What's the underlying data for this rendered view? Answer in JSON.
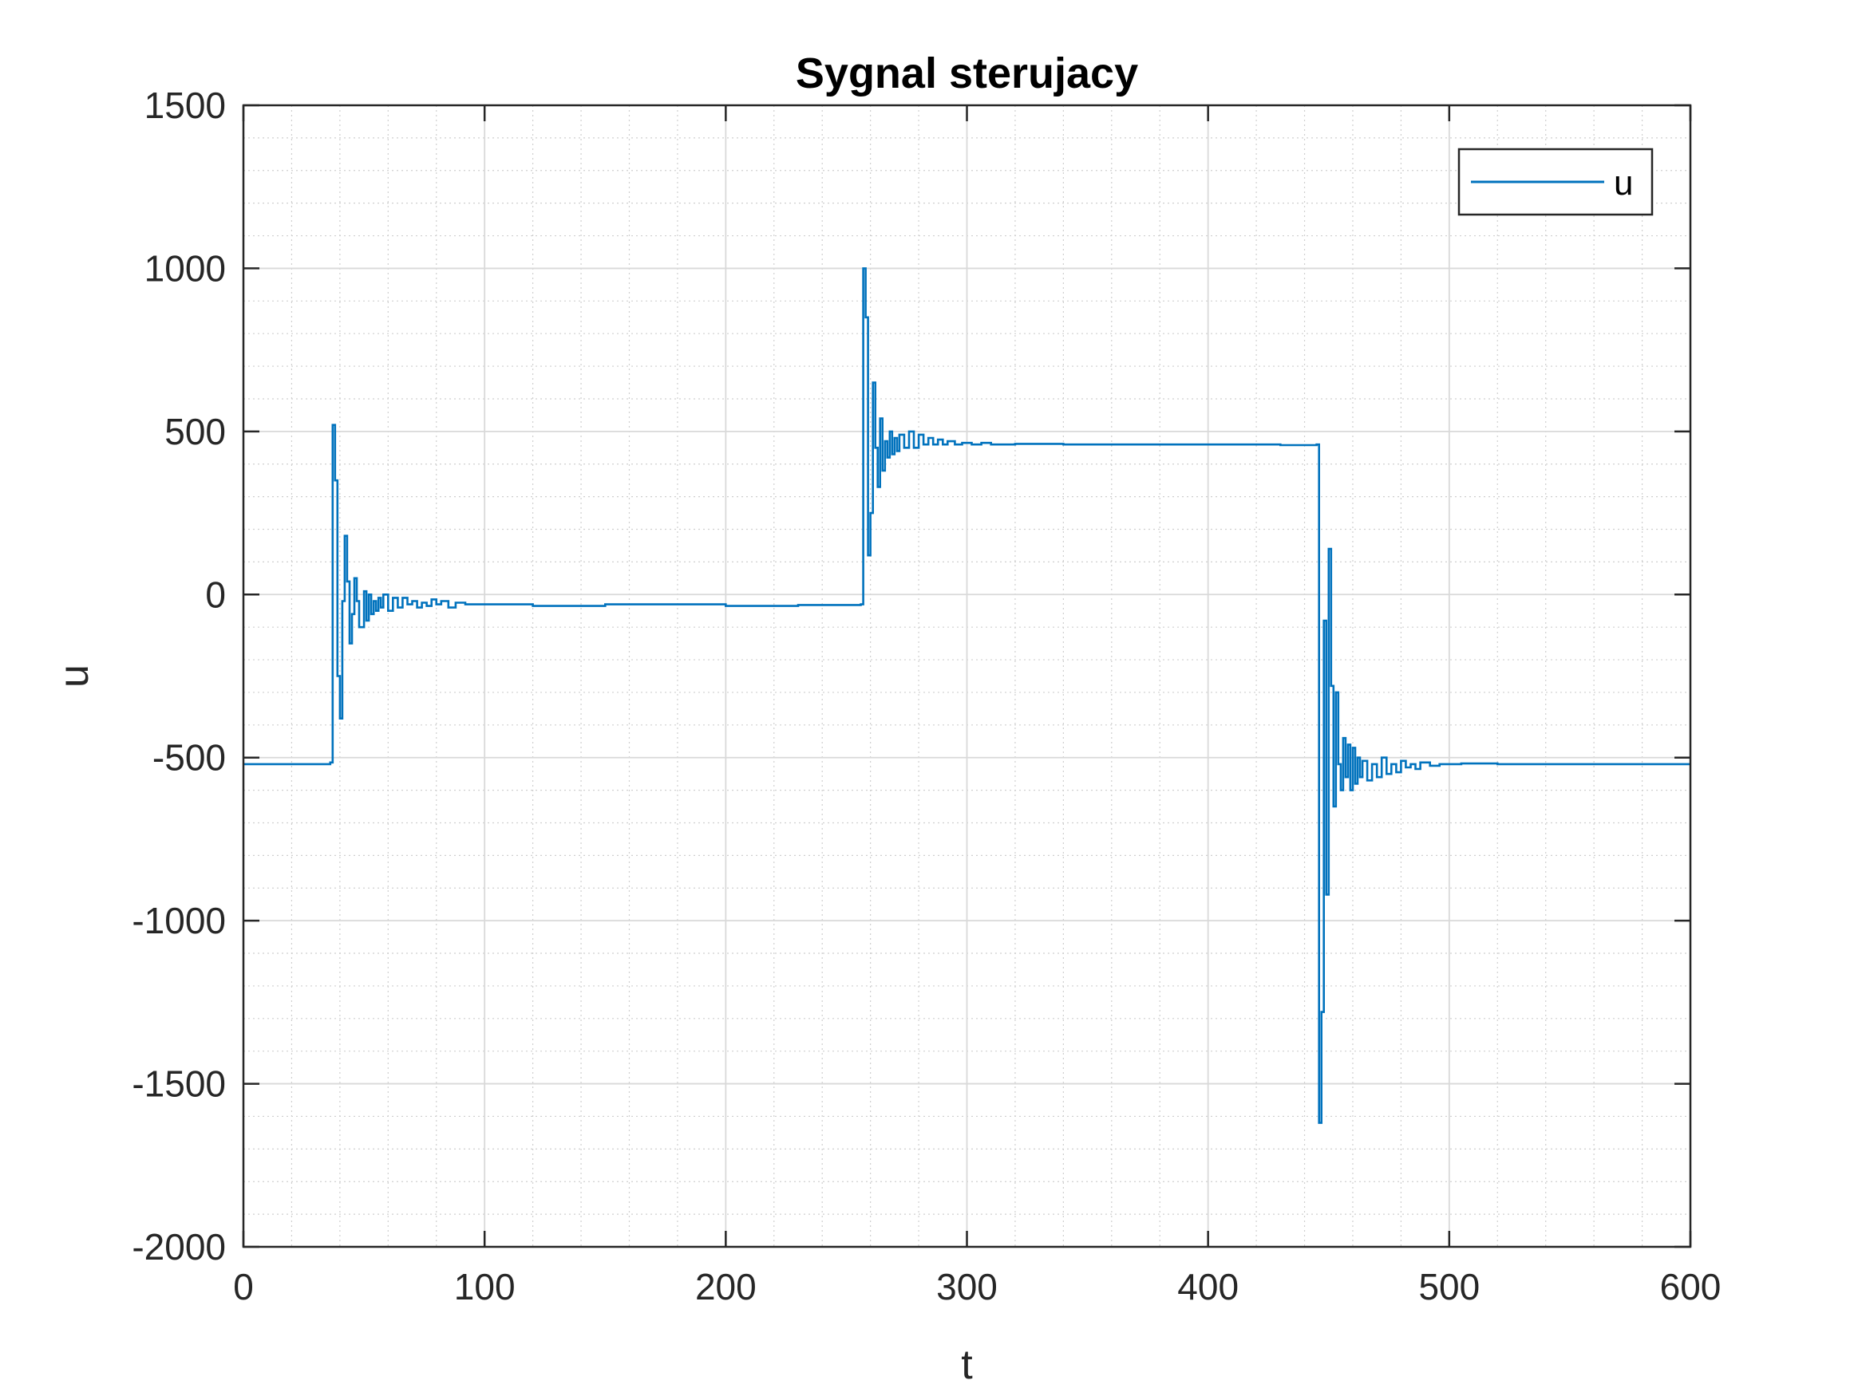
{
  "chart_data": {
    "type": "line",
    "title": "Sygnal sterujacy",
    "xlabel": "t",
    "ylabel": "u",
    "xlim": [
      0,
      600
    ],
    "ylim": [
      -2000,
      1500
    ],
    "xticks": [
      0,
      100,
      200,
      300,
      400,
      500,
      600
    ],
    "xtick_labels": [
      "0",
      "100",
      "200",
      "300",
      "400",
      "500",
      "600"
    ],
    "yticks": [
      -2000,
      -1500,
      -1000,
      -500,
      0,
      500,
      1000,
      1500
    ],
    "ytick_labels": [
      "-2000",
      "-1500",
      "-1000",
      "-500",
      "0",
      "500",
      "1000",
      "1500"
    ],
    "grid": true,
    "minor_grid": true,
    "legend": {
      "location": "top-right",
      "entries": [
        "u"
      ]
    },
    "colors": {
      "series": "#0072BD",
      "axes": "#262626",
      "grid": "#d9d9d9",
      "minor_grid": "#ececec"
    },
    "series": [
      {
        "name": "u",
        "step": true,
        "x": [
          0,
          36,
          37,
          38,
          39,
          40,
          41,
          42,
          43,
          44,
          45,
          46,
          47,
          48,
          50,
          51,
          52,
          53,
          54,
          55,
          56,
          57,
          58,
          60,
          62,
          64,
          66,
          68,
          70,
          72,
          74,
          76,
          78,
          80,
          82,
          85,
          88,
          92,
          100,
          120,
          150,
          200,
          230,
          256,
          257,
          258,
          259,
          260,
          261,
          262,
          263,
          264,
          265,
          266,
          267,
          268,
          269,
          270,
          271,
          272,
          274,
          276,
          278,
          280,
          282,
          284,
          286,
          288,
          290,
          292,
          295,
          298,
          302,
          306,
          310,
          320,
          340,
          370,
          400,
          430,
          445,
          446,
          447,
          448,
          449,
          450,
          451,
          452,
          453,
          454,
          455,
          456,
          457,
          458,
          459,
          460,
          461,
          462,
          463,
          464,
          466,
          468,
          470,
          472,
          474,
          476,
          478,
          480,
          482,
          484,
          486,
          488,
          492,
          496,
          500,
          505,
          520,
          560,
          600
        ],
        "y": [
          -520,
          -515,
          520,
          350,
          -250,
          -380,
          -20,
          180,
          40,
          -150,
          -60,
          50,
          -20,
          -100,
          10,
          -80,
          0,
          -60,
          -20,
          -50,
          -10,
          -40,
          0,
          -50,
          -10,
          -40,
          -10,
          -30,
          -20,
          -40,
          -25,
          -35,
          -15,
          -30,
          -20,
          -40,
          -25,
          -30,
          -30,
          -35,
          -30,
          -35,
          -32,
          -30,
          1000,
          850,
          120,
          250,
          650,
          450,
          330,
          540,
          380,
          470,
          420,
          500,
          430,
          480,
          440,
          490,
          450,
          500,
          450,
          490,
          460,
          480,
          460,
          475,
          460,
          470,
          460,
          465,
          460,
          465,
          460,
          462,
          460,
          460,
          460,
          458,
          460,
          -1620,
          -1280,
          -80,
          -920,
          140,
          -280,
          -650,
          -300,
          -520,
          -600,
          -440,
          -560,
          -460,
          -600,
          -470,
          -580,
          -500,
          -560,
          -510,
          -570,
          -520,
          -560,
          -500,
          -550,
          -520,
          -545,
          -510,
          -530,
          -520,
          -535,
          -515,
          -525,
          -520,
          -520,
          -518,
          -520,
          -520,
          -520
        ]
      }
    ]
  }
}
